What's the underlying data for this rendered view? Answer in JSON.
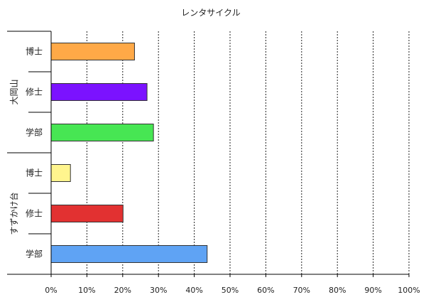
{
  "chart_data": {
    "type": "bar",
    "orientation": "horizontal",
    "title": "レンタサイクル",
    "xlabel": "",
    "ylabel": "",
    "xlim": [
      0,
      100
    ],
    "grid": "vertical dotted",
    "x_ticks": [
      "0%",
      "10%",
      "20%",
      "30%",
      "40%",
      "50%",
      "60%",
      "70%",
      "80%",
      "90%",
      "100%"
    ],
    "groups": [
      {
        "name": "大岡山",
        "categories": [
          "博士",
          "修士",
          "学部"
        ]
      },
      {
        "name": "すずかけ台",
        "categories": [
          "博士",
          "修士",
          "学部"
        ]
      }
    ],
    "bars": [
      {
        "group": "大岡山",
        "category": "博士",
        "value": 23.3,
        "color": "#ffa947"
      },
      {
        "group": "大岡山",
        "category": "修士",
        "value": 26.8,
        "color": "#7b12ff"
      },
      {
        "group": "大岡山",
        "category": "学部",
        "value": 28.6,
        "color": "#47e653"
      },
      {
        "group": "すずかけ台",
        "category": "博士",
        "value": 5.4,
        "color": "#fff58e"
      },
      {
        "group": "すずかけ台",
        "category": "修士",
        "value": 20.1,
        "color": "#e23131"
      },
      {
        "group": "すずかけ台",
        "category": "学部",
        "value": 43.6,
        "color": "#5fa3f4"
      }
    ]
  }
}
